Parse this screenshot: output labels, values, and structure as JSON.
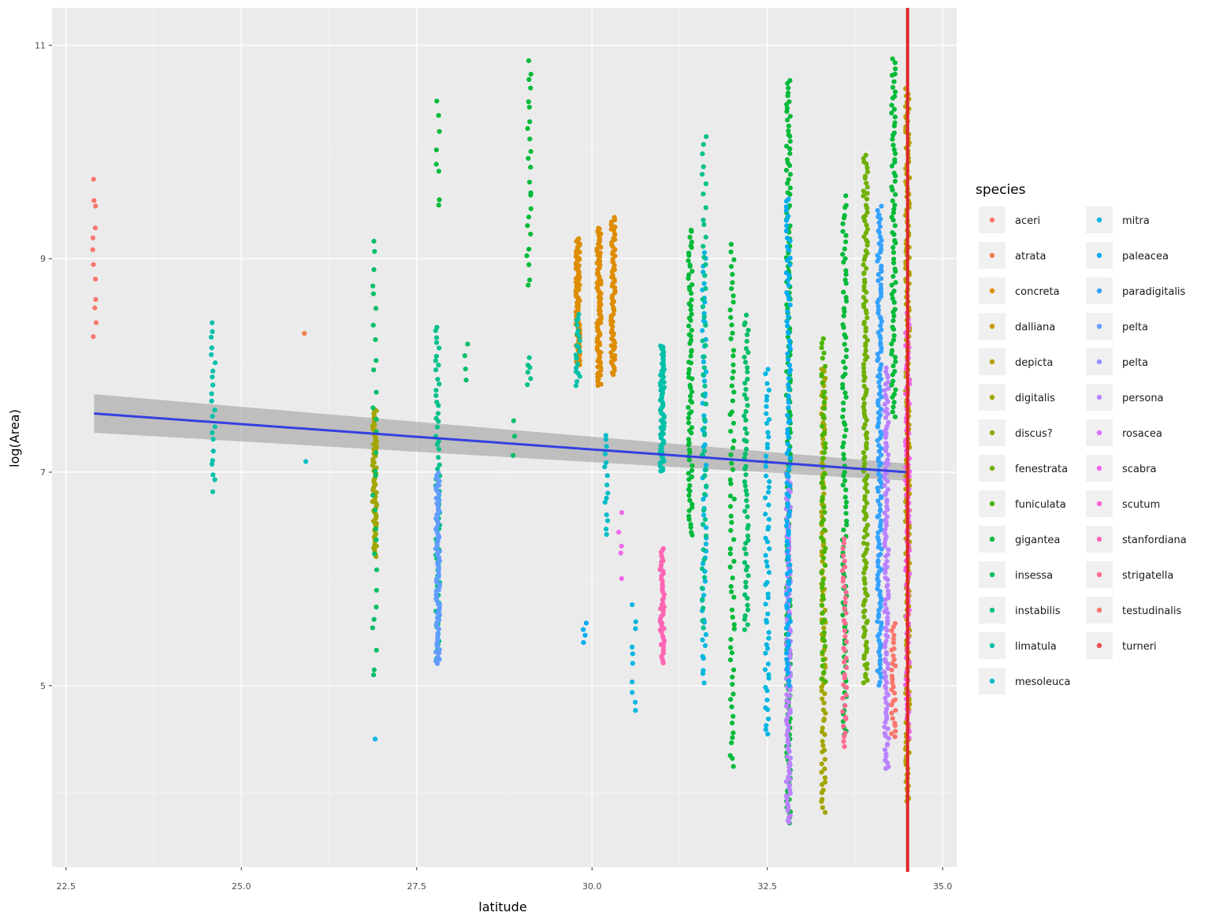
{
  "chart_data": {
    "type": "scatter",
    "xlabel": "latitude",
    "ylabel": "log(Area)",
    "xlim": [
      22.3,
      35.2
    ],
    "ylim": [
      3.3,
      11.35
    ],
    "x_ticks": [
      "22.5",
      "25.0",
      "27.5",
      "30.0",
      "32.5",
      "35.0"
    ],
    "y_ticks": [
      "5",
      "7",
      "9",
      "11"
    ],
    "grid": true,
    "legend": {
      "title": "species",
      "position": "right",
      "columns": 2,
      "entries": [
        {
          "name": "aceri",
          "color": "#F8766D"
        },
        {
          "name": "atrata",
          "color": "#EF7F48"
        },
        {
          "name": "concreta",
          "color": "#DE8C00"
        },
        {
          "name": "dalliana",
          "color": "#C99800"
        },
        {
          "name": "depicta",
          "color": "#B79F00"
        },
        {
          "name": "digitalis",
          "color": "#A3A500"
        },
        {
          "name": "discus?",
          "color": "#8CAB00"
        },
        {
          "name": "fenestrata",
          "color": "#6FB000"
        },
        {
          "name": "funiculata",
          "color": "#49B500"
        },
        {
          "name": "gigantea",
          "color": "#00BA38"
        },
        {
          "name": "insessa",
          "color": "#00BE67"
        },
        {
          "name": "instabilis",
          "color": "#00C08B"
        },
        {
          "name": "limatula",
          "color": "#00C0AA"
        },
        {
          "name": "mesoleuca",
          "color": "#00BCC6"
        },
        {
          "name": "mitra",
          "color": "#00B6E0"
        },
        {
          "name": "paleacea",
          "color": "#00ACF2"
        },
        {
          "name": "paradigitalis",
          "color": "#35A2FF"
        },
        {
          "name": "pelta",
          "color": "#619CFF"
        },
        {
          "name": "pelta",
          "color": "#9590FF"
        },
        {
          "name": "persona",
          "color": "#B983FF"
        },
        {
          "name": "rosacea",
          "color": "#DB72FB"
        },
        {
          "name": "scabra",
          "color": "#F066EA"
        },
        {
          "name": "scutum",
          "color": "#FA62D4"
        },
        {
          "name": "stanfordiana",
          "color": "#FF65B5"
        },
        {
          "name": "strigatella",
          "color": "#FF6C91"
        },
        {
          "name": "testudinalis",
          "color": "#F8766D"
        },
        {
          "name": "turneri",
          "color": "#EF4F52"
        }
      ]
    },
    "vertical_line": {
      "x": 34.5,
      "color": "#E0262B"
    },
    "trend_line": {
      "x": [
        22.9,
        34.5
      ],
      "y": [
        7.55,
        7.0
      ],
      "ci": [
        0.18,
        0.08
      ],
      "color": "#3340E0"
    },
    "point_columns": [
      {
        "x": 22.9,
        "series": 0,
        "y_min": 8.2,
        "y_max": 9.8,
        "n": 12
      },
      {
        "x": 24.6,
        "series": 12,
        "y_min": 6.8,
        "y_max": 8.45,
        "n": 22
      },
      {
        "x": 25.9,
        "series": 13,
        "y_min": 7.1,
        "y_max": 7.1,
        "n": 1
      },
      {
        "x": 25.9,
        "series": 1,
        "y_min": 8.3,
        "y_max": 8.3,
        "n": 1
      },
      {
        "x": 26.9,
        "series": 5,
        "y_min": 6.2,
        "y_max": 7.6,
        "n": 70
      },
      {
        "x": 26.9,
        "series": 10,
        "y_min": 5.0,
        "y_max": 9.3,
        "n": 30
      },
      {
        "x": 26.9,
        "series": 14,
        "y_min": 4.5,
        "y_max": 4.5,
        "n": 1
      },
      {
        "x": 27.8,
        "series": 11,
        "y_min": 5.2,
        "y_max": 8.4,
        "n": 60
      },
      {
        "x": 27.8,
        "series": 17,
        "y_min": 5.2,
        "y_max": 7.0,
        "n": 80
      },
      {
        "x": 27.8,
        "series": 9,
        "y_min": 9.4,
        "y_max": 10.6,
        "n": 8
      },
      {
        "x": 28.2,
        "series": 10,
        "y_min": 7.8,
        "y_max": 8.3,
        "n": 4
      },
      {
        "x": 29.1,
        "series": 9,
        "y_min": 8.7,
        "y_max": 10.9,
        "n": 24
      },
      {
        "x": 29.1,
        "series": 11,
        "y_min": 7.8,
        "y_max": 8.1,
        "n": 6
      },
      {
        "x": 28.9,
        "series": 10,
        "y_min": 7.1,
        "y_max": 7.6,
        "n": 3
      },
      {
        "x": 29.8,
        "series": 2,
        "y_min": 8.0,
        "y_max": 9.2,
        "n": 90
      },
      {
        "x": 30.1,
        "series": 2,
        "y_min": 7.8,
        "y_max": 9.3,
        "n": 90
      },
      {
        "x": 30.3,
        "series": 2,
        "y_min": 7.9,
        "y_max": 9.4,
        "n": 70
      },
      {
        "x": 29.8,
        "series": 12,
        "y_min": 7.8,
        "y_max": 8.5,
        "n": 20
      },
      {
        "x": 29.9,
        "series": 15,
        "y_min": 5.4,
        "y_max": 5.6,
        "n": 4
      },
      {
        "x": 30.2,
        "series": 13,
        "y_min": 6.4,
        "y_max": 7.4,
        "n": 15
      },
      {
        "x": 30.4,
        "series": 21,
        "y_min": 6.0,
        "y_max": 6.7,
        "n": 5
      },
      {
        "x": 30.6,
        "series": 14,
        "y_min": 4.7,
        "y_max": 5.8,
        "n": 10
      },
      {
        "x": 31.0,
        "series": 12,
        "y_min": 7.0,
        "y_max": 8.2,
        "n": 70
      },
      {
        "x": 31.0,
        "series": 23,
        "y_min": 5.2,
        "y_max": 6.3,
        "n": 50
      },
      {
        "x": 31.4,
        "series": 9,
        "y_min": 6.4,
        "y_max": 9.3,
        "n": 80
      },
      {
        "x": 31.6,
        "series": 14,
        "y_min": 5.0,
        "y_max": 9.1,
        "n": 60
      },
      {
        "x": 31.6,
        "series": 11,
        "y_min": 5.5,
        "y_max": 10.2,
        "n": 50
      },
      {
        "x": 32.0,
        "series": 9,
        "y_min": 4.2,
        "y_max": 9.2,
        "n": 70
      },
      {
        "x": 32.2,
        "series": 10,
        "y_min": 5.5,
        "y_max": 8.5,
        "n": 60
      },
      {
        "x": 32.5,
        "series": 14,
        "y_min": 4.5,
        "y_max": 8.0,
        "n": 60
      },
      {
        "x": 32.8,
        "series": 9,
        "y_min": 3.7,
        "y_max": 10.7,
        "n": 180
      },
      {
        "x": 32.8,
        "series": 19,
        "y_min": 3.7,
        "y_max": 7.0,
        "n": 120
      },
      {
        "x": 32.8,
        "series": 15,
        "y_min": 5.0,
        "y_max": 9.6,
        "n": 100
      },
      {
        "x": 33.3,
        "series": 5,
        "y_min": 3.8,
        "y_max": 8.0,
        "n": 100
      },
      {
        "x": 33.3,
        "series": 8,
        "y_min": 5.0,
        "y_max": 8.3,
        "n": 60
      },
      {
        "x": 33.6,
        "series": 9,
        "y_min": 4.5,
        "y_max": 9.6,
        "n": 100
      },
      {
        "x": 33.6,
        "series": 24,
        "y_min": 4.4,
        "y_max": 6.4,
        "n": 40
      },
      {
        "x": 33.9,
        "series": 7,
        "y_min": 5.0,
        "y_max": 10.0,
        "n": 150
      },
      {
        "x": 34.1,
        "series": 16,
        "y_min": 5.0,
        "y_max": 9.5,
        "n": 150
      },
      {
        "x": 34.2,
        "series": 19,
        "y_min": 4.2,
        "y_max": 8.0,
        "n": 120
      },
      {
        "x": 34.3,
        "series": 9,
        "y_min": 7.5,
        "y_max": 10.9,
        "n": 80
      },
      {
        "x": 34.3,
        "series": 25,
        "y_min": 4.5,
        "y_max": 5.6,
        "n": 30
      },
      {
        "x": 34.5,
        "series": 4,
        "y_min": 3.9,
        "y_max": 10.6,
        "n": 220
      },
      {
        "x": 34.5,
        "series": 21,
        "y_min": 4.5,
        "y_max": 8.5,
        "n": 100
      }
    ]
  }
}
